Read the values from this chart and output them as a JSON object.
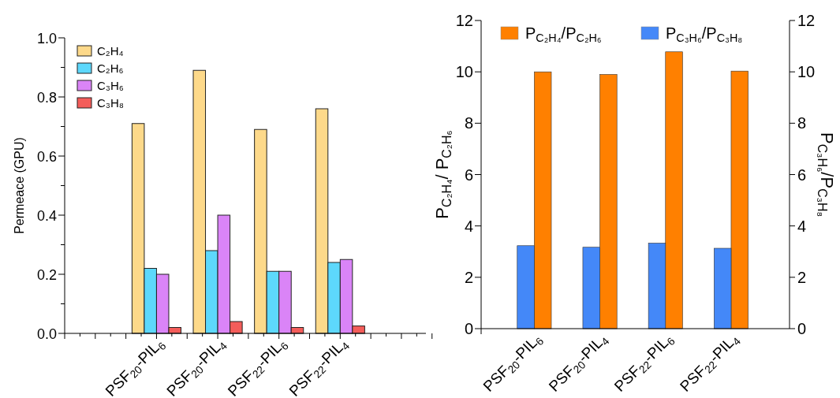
{
  "chart_data": [
    {
      "type": "bar",
      "ylabel": "Permeace (GPU)",
      "categories": [
        "PSF$_{20}$-PIL$_{6}$",
        "PSF$_{20}$-PIL$_{4}$",
        "PSF$_{22}$-PIL$_{6}$",
        "PSF$_{22}$-PIL$_{4}$"
      ],
      "series": [
        {
          "name": "C₂H₄",
          "color": "#fdd98a",
          "values": [
            0.71,
            0.89,
            0.69,
            0.76
          ]
        },
        {
          "name": "C₂H₆",
          "color": "#5dd8fc",
          "values": [
            0.22,
            0.28,
            0.21,
            0.24
          ]
        },
        {
          "name": "C₃H₆",
          "color": "#da84f7",
          "values": [
            0.2,
            0.4,
            0.21,
            0.25
          ]
        },
        {
          "name": "C₃H₈",
          "color": "#f45d5a",
          "values": [
            0.02,
            0.04,
            0.02,
            0.025
          ]
        }
      ],
      "ylim": [
        0,
        1
      ],
      "yticks": [
        {
          "value": 0,
          "label": "0.0"
        },
        {
          "value": 0.2,
          "label": "0.2"
        },
        {
          "value": 0.4,
          "label": "0.4"
        },
        {
          "value": 0.6,
          "label": "0.6"
        },
        {
          "value": 0.8,
          "label": "0.8"
        },
        {
          "value": 1,
          "label": "1.0"
        }
      ],
      "legend": "top left"
    },
    {
      "type": "bar",
      "ylabel": "P$_{C₂H₄}$/ P$_{C₂H₆}$",
      "y2label": "P$_{C₃H₆}$/P$_{C₃H₈}$",
      "categories": [
        "PSF$_{20}$-PIL$_{6}$",
        "PSF$_{20}$-PIL$_{4}$",
        "PSF$_{22}$-PIL$_{6}$",
        "PSF$_{22}$-PIL$_{4}$"
      ],
      "series": [
        {
          "name": "P$_{C₂H₄}$/P$_{C₂H₆}$",
          "color": "#ff8000",
          "values": [
            10.0,
            9.9,
            10.78,
            10.03
          ]
        },
        {
          "name": "P$_{C₃H₆}$/P$_{C₃H₈}$",
          "color": "#4488f8",
          "axis": "y2",
          "values": [
            3.23,
            3.17,
            3.33,
            3.13
          ]
        }
      ],
      "ylim": [
        0,
        12
      ],
      "yticks": [
        0,
        2,
        4,
        6,
        8,
        10,
        12
      ],
      "y2lim": [
        0,
        12
      ],
      "y2ticks": [
        0,
        2,
        4,
        6,
        8,
        10,
        12
      ],
      "legend": "top"
    }
  ]
}
